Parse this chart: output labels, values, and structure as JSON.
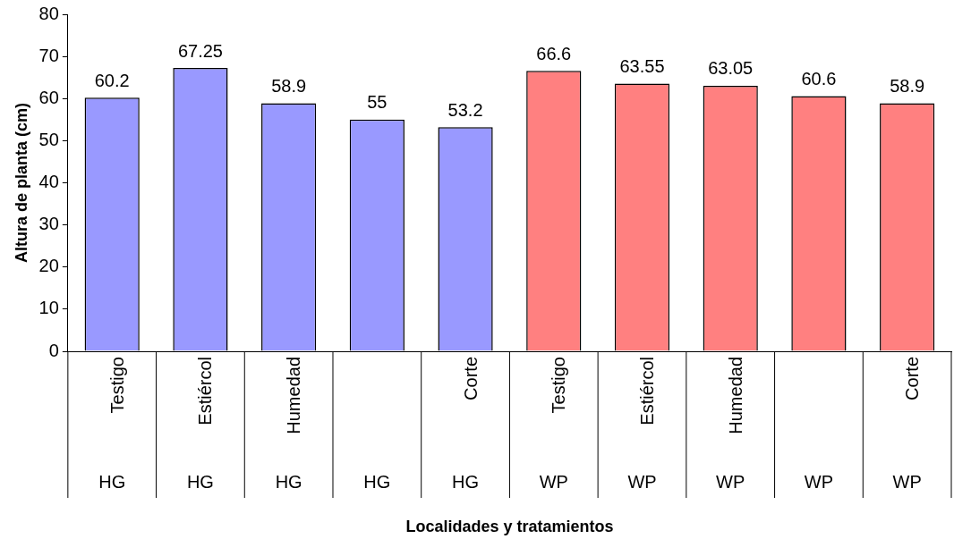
{
  "chart_data": {
    "type": "bar",
    "xlabel": "Localidades y tratamientos",
    "ylabel": "Altura de planta (cm)",
    "categories": [
      "Testigo\nHG",
      "Estiércol\nHG",
      "Humedad\nHG",
      "\nHG",
      "Corte\nHG",
      "Testigo\nWP",
      "Estiércol\nWP",
      "Humedad\nWP",
      "\nWP",
      "Corte\nWP"
    ],
    "values": [
      60.2,
      67.25,
      58.9,
      55,
      53.2,
      66.6,
      63.55,
      63.05,
      60.6,
      58.9
    ],
    "colors": [
      "#9999ff",
      "#9999ff",
      "#9999ff",
      "#9999ff",
      "#9999ff",
      "#ff8080",
      "#ff8080",
      "#ff8080",
      "#ff8080",
      "#ff8080"
    ],
    "ylim": [
      0,
      80
    ],
    "yticks": [
      0,
      10,
      20,
      30,
      40,
      50,
      60,
      70,
      80
    ],
    "grid": false,
    "legend": false,
    "data_labels": true
  }
}
